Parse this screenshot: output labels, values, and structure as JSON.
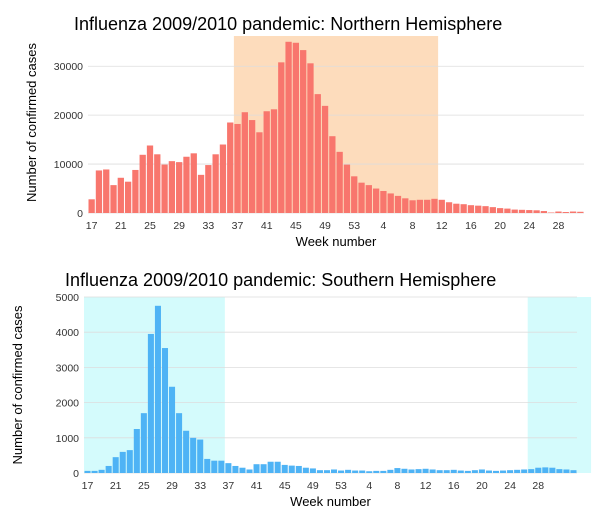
{
  "chart_data": [
    {
      "type": "bar",
      "title": "Influenza 2009/2010 pandemic: Northern Hemisphere",
      "xlabel": "Week number",
      "ylabel": "Number of confirmed cases",
      "bar_color": "#F8766D",
      "highlight_color": "#FDDCBC",
      "ylim": [
        0,
        37000
      ],
      "yticks": [
        0,
        10000,
        20000,
        30000
      ],
      "ytick_labels": [
        "0",
        "10000",
        "20000",
        "30000"
      ],
      "xtick_labels": [
        "17",
        "21",
        "25",
        "29",
        "33",
        "37",
        "41",
        "45",
        "49",
        "53",
        "4",
        "8",
        "12",
        "16",
        "20",
        "24",
        "28"
      ],
      "xtick_every": 4,
      "highlight_ranges": [
        [
          20,
          48
        ]
      ],
      "values": [
        2800,
        8700,
        8900,
        5700,
        7200,
        6400,
        8800,
        11900,
        13800,
        12000,
        9900,
        10600,
        10400,
        11500,
        12200,
        7800,
        9800,
        12000,
        14000,
        18500,
        18200,
        20600,
        19000,
        16500,
        20800,
        21200,
        30800,
        35000,
        34800,
        33300,
        30600,
        24300,
        21900,
        15700,
        12500,
        9900,
        7500,
        6200,
        5700,
        5000,
        4500,
        4000,
        3500,
        3000,
        2600,
        2700,
        2700,
        2900,
        2700,
        2200,
        1900,
        1800,
        1600,
        1500,
        1400,
        1200,
        1000,
        900,
        700,
        650,
        600,
        550,
        400,
        100,
        300,
        200,
        300,
        250
      ]
    },
    {
      "type": "bar",
      "title": "Influenza 2009/2010 pandemic: Southern Hemisphere",
      "xlabel": "Week number",
      "ylabel": "Number of confirmed cases",
      "bar_color": "#4EB3F5",
      "highlight_color": "#D4FBFC",
      "ylim": [
        0,
        5000
      ],
      "yticks": [
        0,
        1000,
        2000,
        3000,
        4000,
        5000
      ],
      "ytick_labels": [
        "0",
        "1000",
        "2000",
        "3000",
        "4000",
        "5000"
      ],
      "xtick_labels": [
        "17",
        "21",
        "25",
        "29",
        "33",
        "37",
        "41",
        "45",
        "49",
        "53",
        "4",
        "8",
        "12",
        "16",
        "20",
        "24",
        "28"
      ],
      "xtick_every": 4,
      "highlight_ranges": [
        [
          0,
          20
        ],
        [
          63,
          72
        ]
      ],
      "values": [
        60,
        60,
        90,
        200,
        450,
        600,
        650,
        1250,
        1700,
        3950,
        4750,
        3550,
        2450,
        1700,
        1200,
        1000,
        950,
        400,
        350,
        350,
        280,
        200,
        150,
        100,
        250,
        250,
        320,
        320,
        230,
        210,
        200,
        150,
        130,
        80,
        80,
        100,
        70,
        90,
        70,
        70,
        50,
        60,
        60,
        90,
        140,
        120,
        100,
        110,
        120,
        100,
        80,
        80,
        90,
        70,
        60,
        80,
        100,
        70,
        60,
        70,
        80,
        90,
        100,
        110,
        150,
        160,
        150,
        110,
        100,
        80
      ]
    }
  ]
}
